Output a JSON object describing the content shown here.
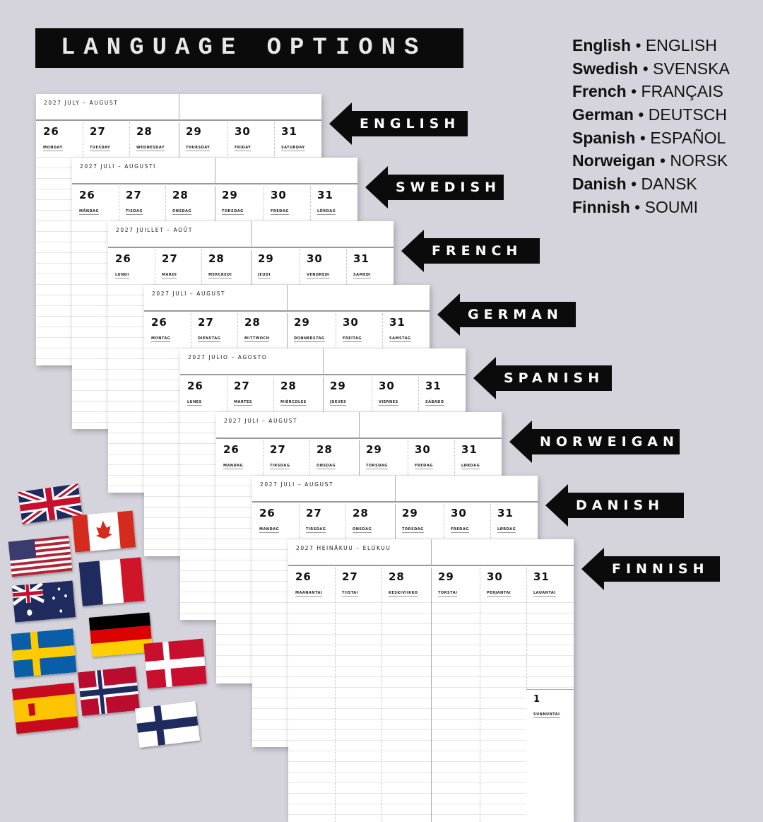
{
  "banner": {
    "title": "LANGUAGE OPTIONS"
  },
  "languages": [
    {
      "name": "English",
      "native": "ENGLISH"
    },
    {
      "name": "Swedish",
      "native": "SVENSKA"
    },
    {
      "name": "French",
      "native": "FRANÇAIS"
    },
    {
      "name": "German",
      "native": "DEUTSCH"
    },
    {
      "name": "Spanish",
      "native": "ESPAÑOL"
    },
    {
      "name": "Norweigan",
      "native": "NORSK"
    },
    {
      "name": "Danish",
      "native": "DANSK"
    },
    {
      "name": "Finnish",
      "native": "SOUMI"
    }
  ],
  "cards": [
    {
      "label": "ENGLISH",
      "title": "2027 JULY – AUGUST",
      "days": [
        "26",
        "27",
        "28",
        "29",
        "30",
        "31"
      ],
      "names": [
        "MONDAY",
        "TUESDAY",
        "WEDNESDAY",
        "THURSDAY",
        "FRIDAY",
        "SATURDAY"
      ]
    },
    {
      "label": "SWEDISH",
      "title": "2027 JULI – AUGUSTI",
      "days": [
        "26",
        "27",
        "28",
        "29",
        "30",
        "31"
      ],
      "names": [
        "MÅNDAG",
        "TISDAG",
        "ONSDAG",
        "TORSDAG",
        "FREDAG",
        "LÖRDAG"
      ]
    },
    {
      "label": "FRENCH",
      "title": "2027 JUILLET – AOÛT",
      "days": [
        "26",
        "27",
        "28",
        "29",
        "30",
        "31"
      ],
      "names": [
        "LUNDI",
        "MARDI",
        "MERCREDI",
        "JEUDI",
        "VENDREDI",
        "SAMEDI"
      ]
    },
    {
      "label": "GERMAN",
      "title": "2027 JULI – AUGUST",
      "days": [
        "26",
        "27",
        "28",
        "29",
        "30",
        "31"
      ],
      "names": [
        "MONTAG",
        "DIENSTAG",
        "MITTWOCH",
        "DONNERSTAG",
        "FREITAG",
        "SAMSTAG"
      ]
    },
    {
      "label": "SPANISH",
      "title": "2027 JULIO – AGOSTO",
      "days": [
        "26",
        "27",
        "28",
        "29",
        "30",
        "31"
      ],
      "names": [
        "LUNES",
        "MARTES",
        "MIÉRCOLES",
        "JUEVES",
        "VIERNES",
        "SÁBADO"
      ]
    },
    {
      "label": "NORWEIGAN",
      "title": "2027 JULI – AUGUST",
      "days": [
        "26",
        "27",
        "28",
        "29",
        "30",
        "31"
      ],
      "names": [
        "MANDAG",
        "TIRSDAG",
        "ONSDAG",
        "TORSDAG",
        "FREDAG",
        "LØRDAG"
      ]
    },
    {
      "label": "DANISH",
      "title": "2027 JULI – AUGUST",
      "days": [
        "26",
        "27",
        "28",
        "29",
        "30",
        "31"
      ],
      "names": [
        "MANDAG",
        "TIRSDAG",
        "ONSDAG",
        "TORSDAG",
        "FREDAG",
        "LØRDAG"
      ]
    },
    {
      "label": "FINNISH",
      "title": "2027 HEINÄKUU – ELOKUU",
      "days": [
        "26",
        "27",
        "28",
        "29",
        "30",
        "31"
      ],
      "names": [
        "MAANANTAI",
        "TIISTAI",
        "KESKIVIIKKO",
        "TORSTAI",
        "PERJANTAI",
        "LAUANTAI"
      ],
      "sunday": {
        "day": "1",
        "name": "SUNNUNTAI"
      }
    }
  ],
  "flags": [
    "united-kingdom",
    "canada",
    "united-states",
    "france",
    "australia",
    "germany",
    "sweden",
    "denmark",
    "norway",
    "spain",
    "finland"
  ],
  "colors": {
    "background": "#d5d4dc",
    "tag": "#0b0b0b"
  }
}
